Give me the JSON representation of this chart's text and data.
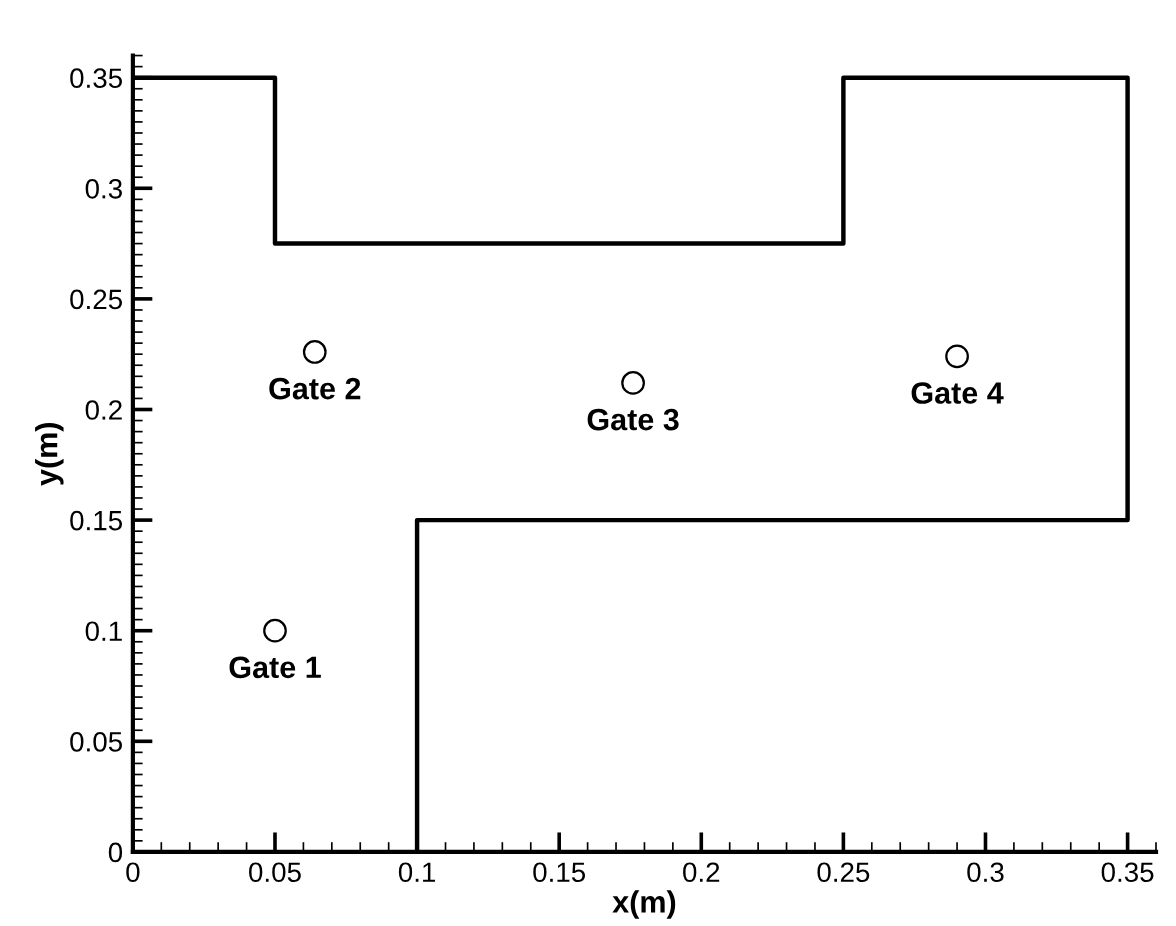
{
  "chart_data": {
    "type": "line",
    "xlabel": "x(m)",
    "ylabel": "y(m)",
    "series": [
      {
        "color": "#000000",
        "x": [
          0,
          0.05,
          0.05,
          0.25,
          0.25,
          0.35,
          0.35,
          0.1,
          0.1
        ],
        "values": [
          0.35,
          0.35,
          0.275,
          0.275,
          0.35,
          0.35,
          0.15,
          0.15,
          0
        ]
      },
      {
        "type": "scatter",
        "color": "#000000",
        "marker": "circle",
        "x": [
          0.05,
          0.064,
          0.176,
          0.29
        ],
        "values": [
          0.1,
          0.226,
          0.212,
          0.224
        ]
      }
    ],
    "annotations": [
      {
        "text": "Gate 1",
        "x": 0.05,
        "y": 0.1
      },
      {
        "text": "Gate 2",
        "x": 0.064,
        "y": 0.226
      },
      {
        "text": "Gate 3",
        "x": 0.176,
        "y": 0.212
      },
      {
        "text": "Gate 4",
        "x": 0.29,
        "y": 0.224
      }
    ],
    "xlim": [
      0,
      0.36
    ],
    "ylim": [
      0,
      0.36
    ],
    "xticks": [
      0,
      0.05,
      0.1,
      0.15,
      0.2,
      0.25,
      0.3,
      0.35
    ],
    "yticks": [
      0,
      0.05,
      0.1,
      0.15,
      0.2,
      0.25,
      0.3,
      0.35
    ],
    "grid": false,
    "legend": false
  }
}
